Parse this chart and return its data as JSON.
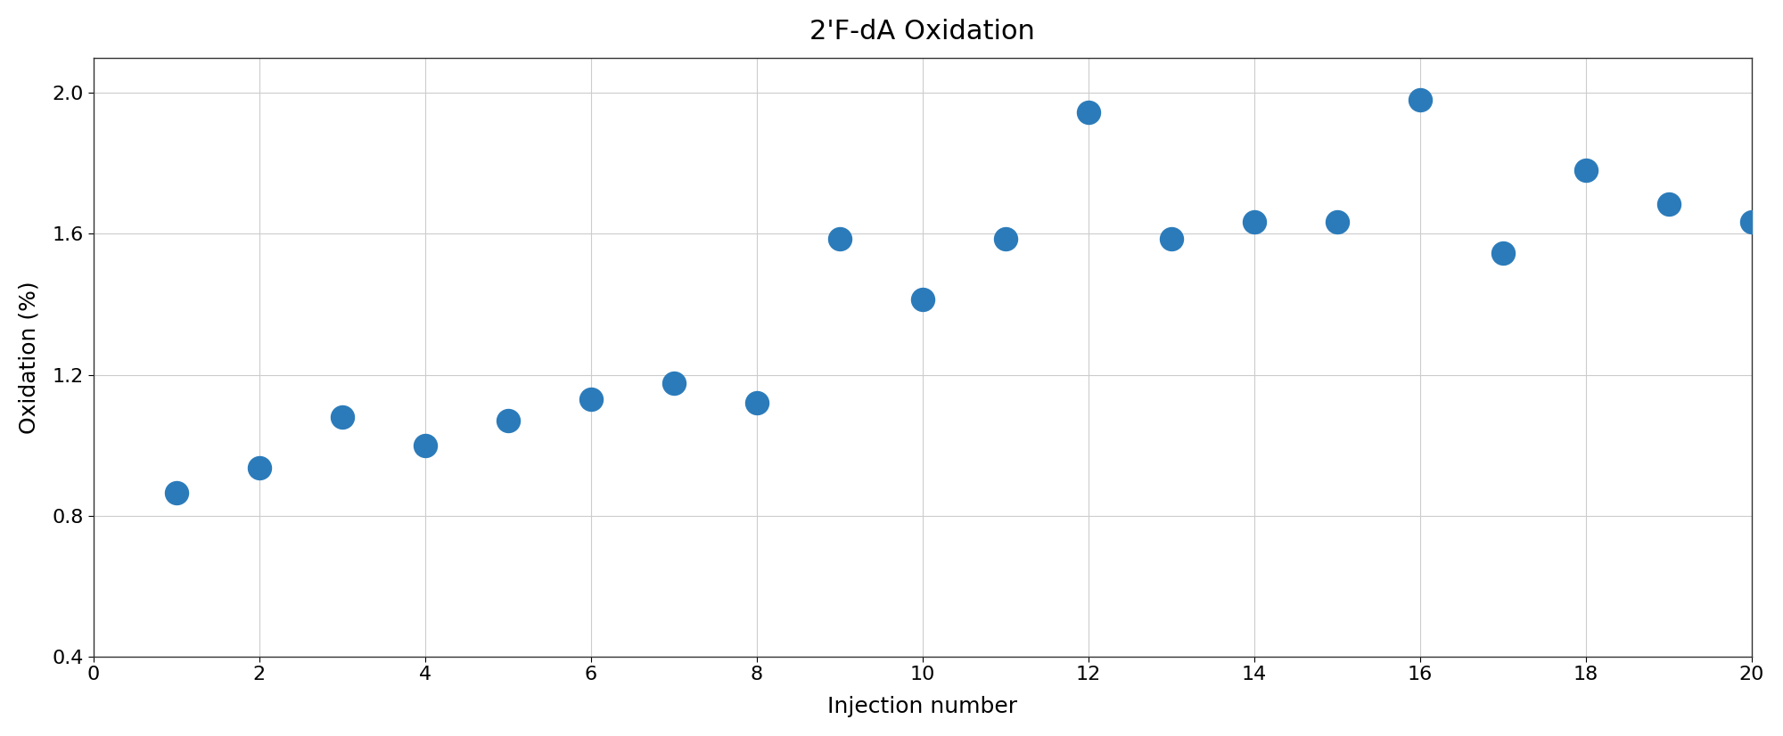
{
  "title": "2'F-dA Oxidation",
  "xlabel": "Injection number",
  "ylabel": "Oxidation (%)",
  "x": [
    1,
    2,
    3,
    4,
    5,
    6,
    7,
    8,
    9,
    10,
    11,
    12,
    13,
    14,
    15,
    16,
    17,
    18,
    19,
    20
  ],
  "y": [
    0.865,
    0.935,
    1.08,
    1.0,
    1.07,
    1.13,
    1.175,
    1.12,
    1.585,
    1.415,
    1.585,
    1.945,
    1.585,
    1.635,
    1.635,
    1.98,
    1.545,
    1.78,
    1.685,
    1.635
  ],
  "xlim": [
    0,
    20
  ],
  "ylim": [
    0.4,
    2.1
  ],
  "yticks": [
    0.4,
    0.8,
    1.2,
    1.6,
    2.0
  ],
  "xticks": [
    0,
    2,
    4,
    6,
    8,
    10,
    12,
    14,
    16,
    18,
    20
  ],
  "dot_color": "#2b7bba",
  "dot_size": 350,
  "background_color": "#ffffff",
  "grid_color": "#cccccc",
  "title_fontsize": 22,
  "label_fontsize": 18,
  "tick_fontsize": 16,
  "spine_color": "#333333"
}
